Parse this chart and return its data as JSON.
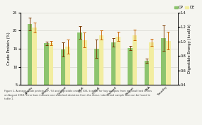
{
  "categories": [
    "Alfalfa",
    "Brome",
    "Coastal",
    "O&A",
    "O,T&A",
    "Orchard",
    "Peanut",
    "T&A",
    "Timothy"
  ],
  "cp_mean": [
    21.8,
    16.5,
    14.8,
    19.5,
    15.0,
    16.7,
    15.2,
    11.7,
    18.0
  ],
  "cp_err": [
    1.8,
    0.5,
    2.0,
    1.8,
    2.5,
    1.2,
    0.5,
    0.5,
    3.5
  ],
  "de_mean": [
    1.19,
    0.98,
    0.93,
    1.02,
    1.09,
    1.07,
    1.09,
    0.99,
    1.01
  ],
  "de_err": [
    0.07,
    0.03,
    0.1,
    0.1,
    0.06,
    0.06,
    0.07,
    0.05,
    0.12
  ],
  "cp_color": "#8dc46e",
  "de_color": "#f2eda0",
  "err_cp_color": "#7a3a00",
  "err_de_color": "#cc6600",
  "ylabel_left": "Crude Protein (%)",
  "ylabel_right": "Digestible Energy (kcal/lb)",
  "ylim_left": [
    5,
    25
  ],
  "ylim_right": [
    0.4,
    1.4
  ],
  "yticks_left": [
    5,
    10,
    15,
    20,
    25
  ],
  "yticks_right": [
    0.4,
    0.6,
    0.8,
    1.0,
    1.2,
    1.4
  ],
  "legend_cp": "CP",
  "legend_de": "DE",
  "bg_color": "#f5f5f0",
  "caption": "Figure 1. Average crude protein (CP, %) and digestible energy (DE, kcal/lb) for hay samples from regional feed stores\non August 2018. Error bars indicate one standard deviation from the mean. Labels and sample size can be found in\ntable 1.",
  "bar_width": 0.28
}
